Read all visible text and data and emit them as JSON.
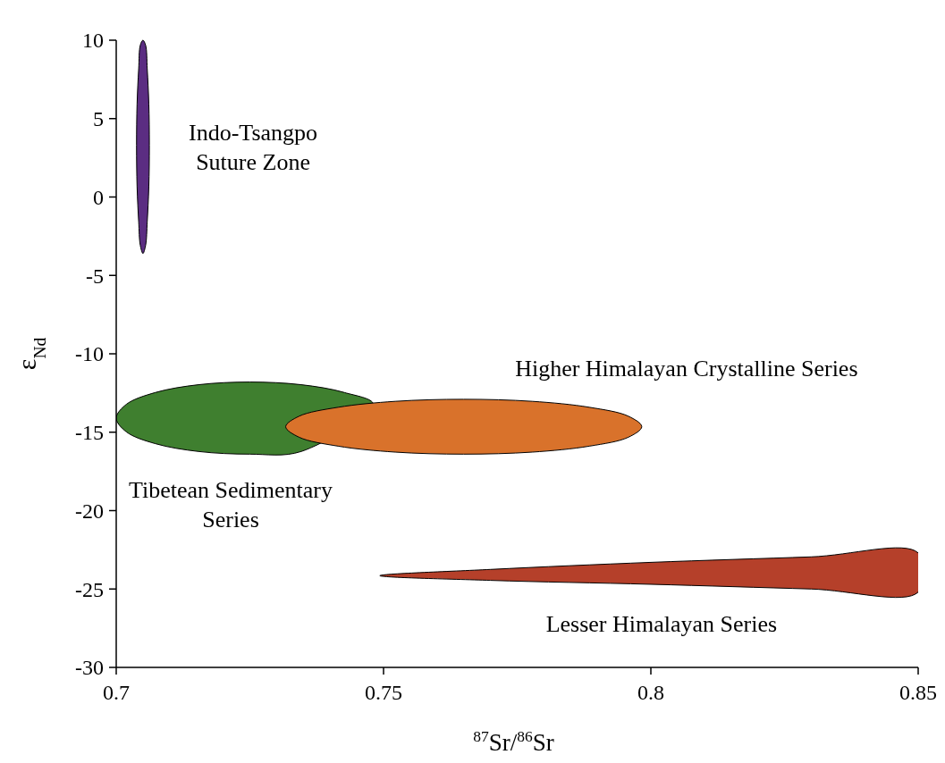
{
  "chart_data": {
    "type": "area",
    "xlabel": "$^{87}$Sr/$^{86}$Sr",
    "ylabel": "ε$_{Nd}$",
    "xlim": [
      0.7,
      0.85
    ],
    "xticks": [
      0.7,
      0.75,
      0.8,
      0.85
    ],
    "ylim": [
      -30,
      10
    ],
    "yticks": [
      -30,
      -25,
      -20,
      -15,
      -10,
      -5,
      0,
      5,
      10
    ],
    "series": [
      {
        "name": "Indo-Tsangpo Suture Zone",
        "color": "#5b2d82",
        "x": [
          0.7062,
          0.7061,
          0.7058,
          0.7055,
          0.705,
          0.7045,
          0.7042,
          0.7039,
          0.7038,
          0.7039,
          0.7042,
          0.7045,
          0.705,
          0.7055,
          0.7058,
          0.7061
        ],
        "values": [
          3.3,
          5.94,
          8.18,
          9.68,
          10,
          9.68,
          8.18,
          5.94,
          3.3,
          0.66,
          -1.58,
          -3.08,
          -3.6,
          -3.08,
          -1.58,
          0.66
        ]
      },
      {
        "name": "Tibetean Sedimentary Series",
        "color": "#3f7f2f",
        "x": [
          0.7481,
          0.7427,
          0.7346,
          0.725,
          0.7154,
          0.7073,
          0.7019,
          0.7,
          0.7019,
          0.7073,
          0.7154,
          0.725,
          0.7346
        ],
        "values": [
          -13.22,
          -12.47,
          -11.97,
          -11.8,
          -11.97,
          -12.47,
          -13.22,
          -14.1,
          -14.98,
          -15.73,
          -16.23,
          -16.4,
          -16.23
        ]
      },
      {
        "name": "Higher Himalayan Crystalline Series",
        "color": "#d9722b",
        "x": [
          0.7983,
          0.7958,
          0.7885,
          0.7778,
          0.765,
          0.7522,
          0.7415,
          0.7342,
          0.7317,
          0.7342,
          0.7415,
          0.7522,
          0.765,
          0.7778,
          0.7885,
          0.7958
        ],
        "values": [
          -14.65,
          -13.98,
          -13.41,
          -13.03,
          -12.9,
          -13.03,
          -13.41,
          -13.98,
          -14.65,
          -15.32,
          -15.89,
          -16.27,
          -16.4,
          -16.27,
          -15.89,
          -15.32
        ]
      },
      {
        "name": "Lesser Himalayan Series",
        "color": "#b5402a",
        "x": [
          0.7493,
          0.77,
          0.8,
          0.83,
          0.85,
          0.85,
          0.83,
          0.8,
          0.77
        ],
        "values": [
          -24.15,
          -23.75,
          -23.3,
          -22.95,
          -22.7,
          -25.2,
          -25.0,
          -24.7,
          -24.45
        ]
      }
    ]
  }
}
